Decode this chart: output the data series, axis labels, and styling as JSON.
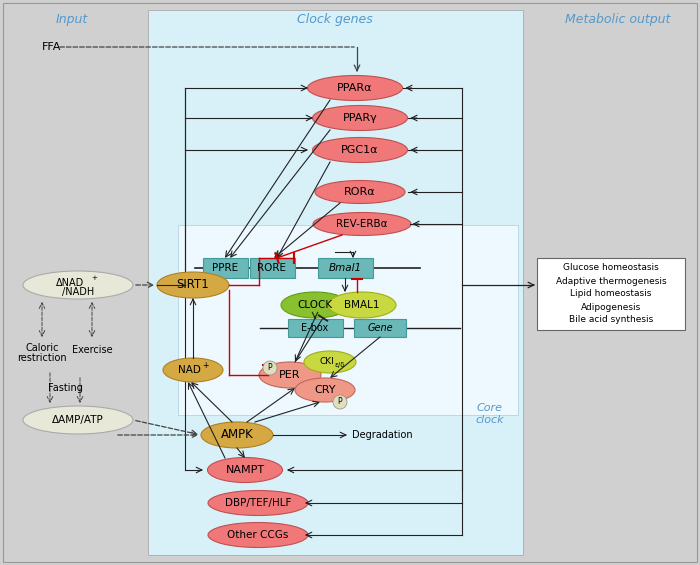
{
  "title_input": "Input",
  "title_clock": "Clock genes",
  "title_output": "Metabolic output",
  "bg_gray": "#d0d0d0",
  "bg_light_blue": "#d8f0f8",
  "bg_inner_blue": "#e8f8ff",
  "ellipse_red": "#f07878",
  "ellipse_salmon": "#f09888",
  "ellipse_gold": "#d4a843",
  "ellipse_green": "#88c030",
  "ellipse_yellow_green": "#c8d840",
  "ellipse_gray_white": "#e8e8d8",
  "rect_teal": "#6ab8b8",
  "arrow_black": "#222222",
  "arrow_red": "#cc0000",
  "text_blue": "#5599cc",
  "metabolic_outputs": [
    "Glucose homeostasis",
    "Adaptive thermogenesis",
    "Lipid homeostasis",
    "Adipogenesis",
    "Bile acid synthesis"
  ]
}
